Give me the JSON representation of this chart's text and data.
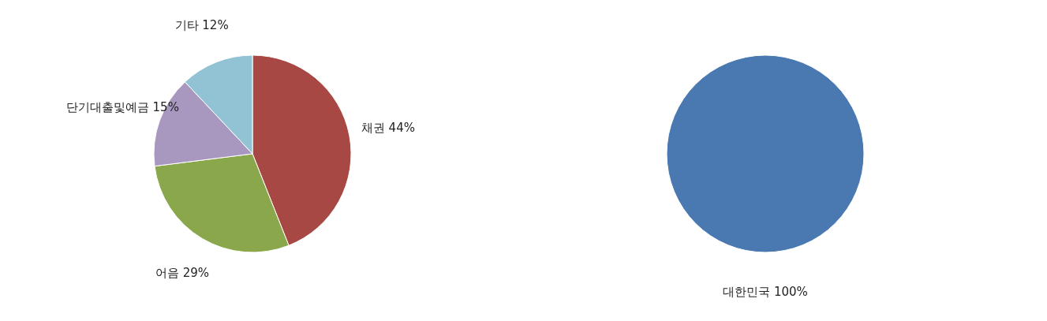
{
  "chart_data": [
    {
      "type": "pie",
      "categories": [
        "채권",
        "어음",
        "단기대출및예금",
        "기타"
      ],
      "values": [
        44,
        29,
        15,
        12
      ],
      "value_labels": [
        "44%",
        "29%",
        "15%",
        "12%"
      ],
      "colors": [
        "#a84844",
        "#8aa74c",
        "#a898c0",
        "#92c3d5"
      ]
    },
    {
      "type": "pie",
      "categories": [
        "대한민국"
      ],
      "values": [
        100
      ],
      "value_labels": [
        "100%"
      ],
      "colors": [
        "#4a78b0"
      ]
    }
  ]
}
